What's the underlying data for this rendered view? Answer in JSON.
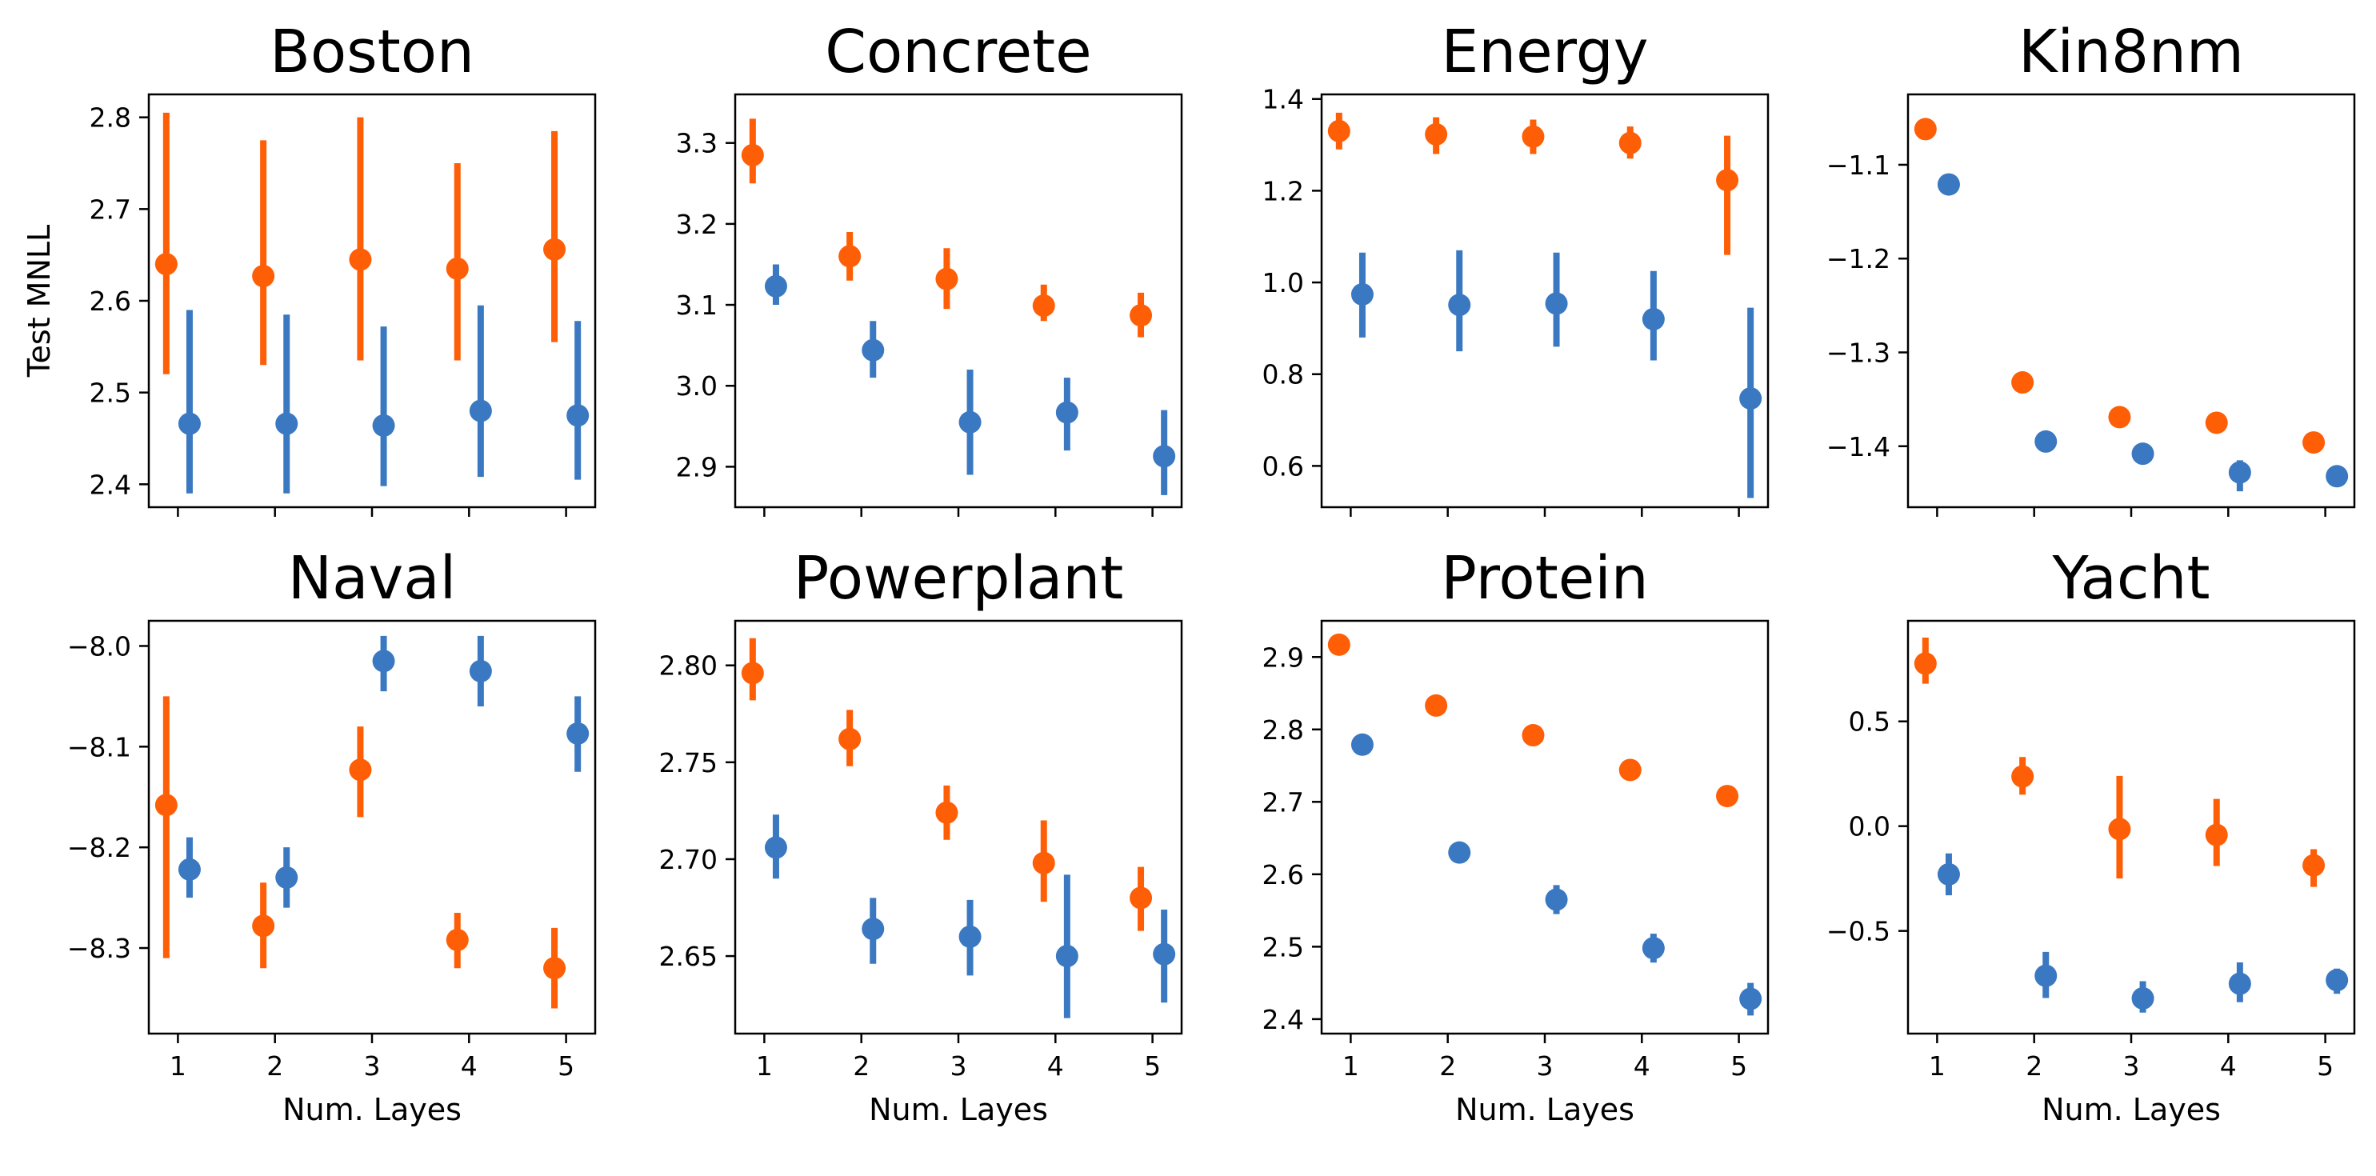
{
  "colors": {
    "series_a": "#fe5e05",
    "series_b": "#3a78c1"
  },
  "chart_data": [
    {
      "type": "scatter",
      "title": "Boston",
      "ylabel": "Test MNLL",
      "xlabel": "",
      "x": [
        1,
        2,
        3,
        4,
        5
      ],
      "ylim": [
        2.375,
        2.825
      ],
      "yticks": [
        2.4,
        2.5,
        2.6,
        2.7,
        2.8
      ],
      "yticklabels": [
        "2.4",
        "2.5",
        "2.6",
        "2.7",
        "2.8"
      ],
      "xticklabels": [],
      "series": [
        {
          "color": "#fe5e05",
          "values": [
            2.64,
            2.627,
            2.645,
            2.635,
            2.656
          ],
          "lower": [
            2.52,
            2.53,
            2.535,
            2.535,
            2.555
          ],
          "upper": [
            2.805,
            2.775,
            2.8,
            2.75,
            2.785
          ]
        },
        {
          "color": "#3a78c1",
          "values": [
            2.466,
            2.466,
            2.464,
            2.48,
            2.475
          ],
          "lower": [
            2.39,
            2.39,
            2.398,
            2.408,
            2.405
          ],
          "upper": [
            2.59,
            2.585,
            2.572,
            2.595,
            2.578
          ]
        }
      ]
    },
    {
      "type": "scatter",
      "title": "Concrete",
      "ylabel": "",
      "xlabel": "",
      "x": [
        1,
        2,
        3,
        4,
        5
      ],
      "ylim": [
        2.85,
        3.36
      ],
      "yticks": [
        2.9,
        3.0,
        3.1,
        3.2,
        3.3
      ],
      "yticklabels": [
        "2.9",
        "3.0",
        "3.1",
        "3.2",
        "3.3"
      ],
      "xticklabels": [],
      "series": [
        {
          "color": "#fe5e05",
          "values": [
            3.285,
            3.16,
            3.132,
            3.099,
            3.087
          ],
          "lower": [
            3.25,
            3.13,
            3.095,
            3.08,
            3.06
          ],
          "upper": [
            3.33,
            3.19,
            3.17,
            3.125,
            3.115
          ]
        },
        {
          "color": "#3a78c1",
          "values": [
            3.123,
            3.044,
            2.955,
            2.967,
            2.913
          ],
          "lower": [
            3.1,
            3.01,
            2.89,
            2.92,
            2.865
          ],
          "upper": [
            3.15,
            3.08,
            3.02,
            3.01,
            2.97
          ]
        }
      ]
    },
    {
      "type": "scatter",
      "title": "Energy",
      "ylabel": "",
      "xlabel": "",
      "x": [
        1,
        2,
        3,
        4,
        5
      ],
      "ylim": [
        0.51,
        1.41
      ],
      "yticks": [
        0.6,
        0.8,
        1.0,
        1.2,
        1.4
      ],
      "yticklabels": [
        "0.6",
        "0.8",
        "1.0",
        "1.2",
        "1.4"
      ],
      "xticklabels": [],
      "series": [
        {
          "color": "#fe5e05",
          "values": [
            1.33,
            1.323,
            1.318,
            1.304,
            1.223
          ],
          "lower": [
            1.29,
            1.28,
            1.28,
            1.27,
            1.06
          ],
          "upper": [
            1.37,
            1.36,
            1.355,
            1.34,
            1.32
          ]
        },
        {
          "color": "#3a78c1",
          "values": [
            0.974,
            0.951,
            0.954,
            0.92,
            0.747
          ],
          "lower": [
            0.88,
            0.85,
            0.86,
            0.83,
            0.53
          ],
          "upper": [
            1.065,
            1.07,
            1.065,
            1.025,
            0.945
          ]
        }
      ]
    },
    {
      "type": "scatter",
      "title": "Kin8nm",
      "ylabel": "",
      "xlabel": "",
      "x": [
        1,
        2,
        3,
        4,
        5
      ],
      "ylim": [
        -1.465,
        -1.025
      ],
      "yticks": [
        -1.4,
        -1.3,
        -1.2,
        -1.1
      ],
      "yticklabels": [
        "−1.4",
        "−1.3",
        "−1.2",
        "−1.1"
      ],
      "xticklabels": [],
      "series": [
        {
          "color": "#fe5e05",
          "values": [
            -1.062,
            -1.332,
            -1.369,
            -1.375,
            -1.396
          ],
          "lower": [
            -1.07,
            -1.338,
            -1.376,
            -1.383,
            -1.402
          ],
          "upper": [
            -1.052,
            -1.326,
            -1.362,
            -1.368,
            -1.39
          ]
        },
        {
          "color": "#3a78c1",
          "values": [
            -1.121,
            -1.395,
            -1.408,
            -1.428,
            -1.432
          ],
          "lower": [
            -1.127,
            -1.401,
            -1.414,
            -1.448,
            -1.438
          ],
          "upper": [
            -1.115,
            -1.389,
            -1.402,
            -1.415,
            -1.426
          ]
        }
      ]
    },
    {
      "type": "scatter",
      "title": "Naval",
      "ylabel": "",
      "xlabel": "Num. Layes",
      "x": [
        1,
        2,
        3,
        4,
        5
      ],
      "ylim": [
        -8.385,
        -7.975
      ],
      "yticks": [
        -8.3,
        -8.2,
        -8.1,
        -8.0
      ],
      "yticklabels": [
        "−8.3",
        "−8.2",
        "−8.1",
        "−8.0"
      ],
      "xticklabels": [
        "1",
        "2",
        "3",
        "4",
        "5"
      ],
      "series": [
        {
          "color": "#fe5e05",
          "values": [
            -8.158,
            -8.278,
            -8.123,
            -8.292,
            -8.32
          ],
          "lower": [
            -8.31,
            -8.32,
            -8.17,
            -8.32,
            -8.36
          ],
          "upper": [
            -8.05,
            -8.235,
            -8.08,
            -8.265,
            -8.28
          ]
        },
        {
          "color": "#3a78c1",
          "values": [
            -8.222,
            -8.23,
            -8.015,
            -8.025,
            -8.087
          ],
          "lower": [
            -8.25,
            -8.26,
            -8.045,
            -8.06,
            -8.125
          ],
          "upper": [
            -8.19,
            -8.2,
            -7.99,
            -7.99,
            -8.05
          ]
        }
      ]
    },
    {
      "type": "scatter",
      "title": "Powerplant",
      "ylabel": "",
      "xlabel": "Num. Layes",
      "x": [
        1,
        2,
        3,
        4,
        5
      ],
      "ylim": [
        2.61,
        2.823
      ],
      "yticks": [
        2.65,
        2.7,
        2.75,
        2.8
      ],
      "yticklabels": [
        "2.65",
        "2.70",
        "2.75",
        "2.80"
      ],
      "xticklabels": [
        "1",
        "2",
        "3",
        "4",
        "5"
      ],
      "series": [
        {
          "color": "#fe5e05",
          "values": [
            2.796,
            2.762,
            2.724,
            2.698,
            2.68
          ],
          "lower": [
            2.782,
            2.748,
            2.71,
            2.678,
            2.663
          ],
          "upper": [
            2.814,
            2.777,
            2.738,
            2.72,
            2.696
          ]
        },
        {
          "color": "#3a78c1",
          "values": [
            2.706,
            2.664,
            2.66,
            2.65,
            2.651
          ],
          "lower": [
            2.69,
            2.646,
            2.64,
            2.618,
            2.626
          ],
          "upper": [
            2.723,
            2.68,
            2.679,
            2.692,
            2.674
          ]
        }
      ]
    },
    {
      "type": "scatter",
      "title": "Protein",
      "ylabel": "",
      "xlabel": "Num. Layes",
      "x": [
        1,
        2,
        3,
        4,
        5
      ],
      "ylim": [
        2.38,
        2.95
      ],
      "yticks": [
        2.4,
        2.5,
        2.6,
        2.7,
        2.8,
        2.9
      ],
      "yticklabels": [
        "2.4",
        "2.5",
        "2.6",
        "2.7",
        "2.8",
        "2.9"
      ],
      "xticklabels": [
        "1",
        "2",
        "3",
        "4",
        "5"
      ],
      "series": [
        {
          "color": "#fe5e05",
          "values": [
            2.917,
            2.833,
            2.792,
            2.744,
            2.708
          ],
          "lower": [
            2.91,
            2.826,
            2.785,
            2.737,
            2.702
          ],
          "upper": [
            2.924,
            2.84,
            2.8,
            2.751,
            2.714
          ]
        },
        {
          "color": "#3a78c1",
          "values": [
            2.779,
            2.63,
            2.565,
            2.498,
            2.428
          ],
          "lower": [
            2.773,
            2.62,
            2.545,
            2.478,
            2.405
          ],
          "upper": [
            2.785,
            2.64,
            2.585,
            2.518,
            2.45
          ]
        }
      ]
    },
    {
      "type": "scatter",
      "title": "Yacht",
      "ylabel": "",
      "xlabel": "Num. Layes",
      "x": [
        1,
        2,
        3,
        4,
        5
      ],
      "ylim": [
        -0.99,
        0.98
      ],
      "yticks": [
        -0.5,
        0.0,
        0.5
      ],
      "yticklabels": [
        "−0.5",
        "0.0",
        "0.5"
      ],
      "xticklabels": [
        "1",
        "2",
        "3",
        "4",
        "5"
      ],
      "series": [
        {
          "color": "#fe5e05",
          "values": [
            0.776,
            0.237,
            -0.014,
            -0.042,
            -0.187
          ],
          "lower": [
            0.68,
            0.15,
            -0.25,
            -0.19,
            -0.29
          ],
          "upper": [
            0.9,
            0.33,
            0.24,
            0.13,
            -0.11
          ]
        },
        {
          "color": "#3a78c1",
          "values": [
            -0.23,
            -0.714,
            -0.822,
            -0.752,
            -0.735
          ],
          "lower": [
            -0.33,
            -0.82,
            -0.89,
            -0.84,
            -0.8
          ],
          "upper": [
            -0.13,
            -0.6,
            -0.74,
            -0.65,
            -0.68
          ]
        }
      ]
    }
  ]
}
